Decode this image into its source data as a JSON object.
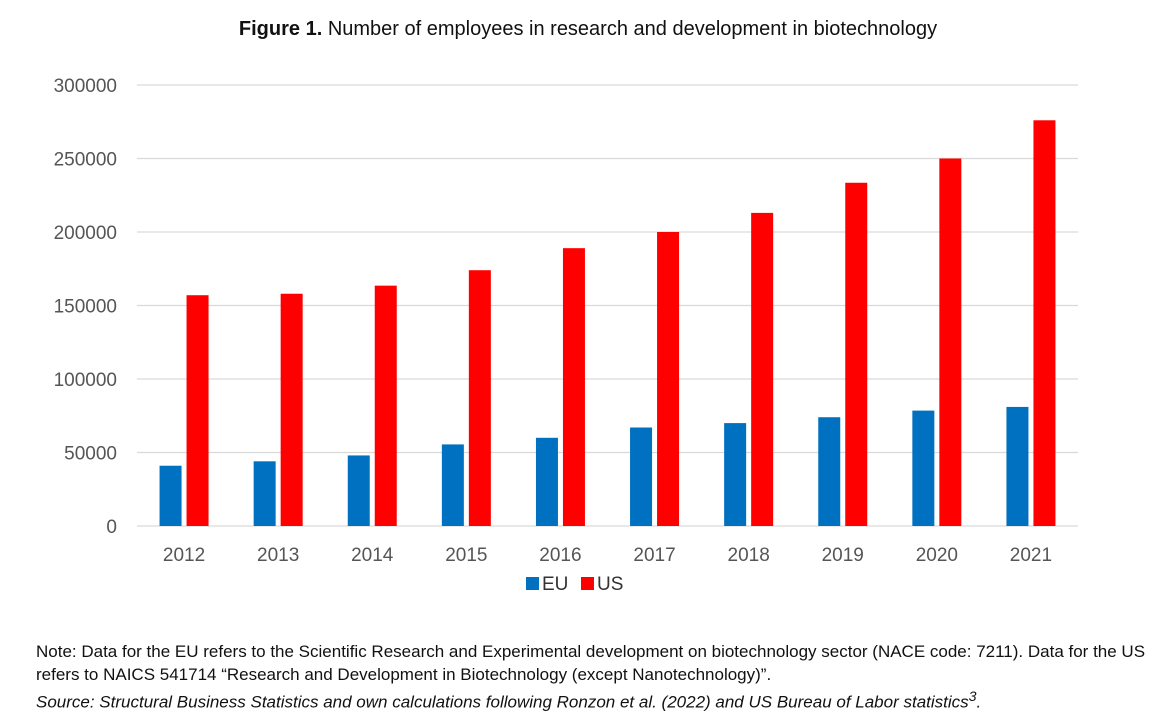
{
  "title": {
    "prefix": "Figure 1.",
    "text": "Number of employees in research and development in biotechnology"
  },
  "chart_data": {
    "type": "bar",
    "title": "Number of employees in research and development in biotechnology",
    "categories": [
      "2012",
      "2013",
      "2014",
      "2015",
      "2016",
      "2017",
      "2018",
      "2019",
      "2020",
      "2021"
    ],
    "series": [
      {
        "name": "EU",
        "color": "#0070C0",
        "values": [
          41000,
          44000,
          48000,
          55500,
          60000,
          67000,
          70000,
          74000,
          78500,
          81000
        ]
      },
      {
        "name": "US",
        "color": "#FF0000",
        "values": [
          157000,
          158000,
          163500,
          174000,
          189000,
          200000,
          213000,
          233500,
          250000,
          276000
        ]
      }
    ],
    "yticks": [
      0,
      50000,
      100000,
      150000,
      200000,
      250000,
      300000
    ],
    "ytick_labels": [
      "0",
      "50000",
      "100000",
      "150000",
      "200000",
      "250000",
      "300000"
    ],
    "ylim": [
      0,
      300000
    ],
    "xlabel": "",
    "ylabel": "",
    "grid": true,
    "legend": "bottom-center"
  },
  "note": {
    "text": "Note: Data for the EU refers to the Scientific Research and Experimental development on biotechnology sector (NACE code: 7211). Data for the US refers to NAICS 541714 “Research and Development in Biotechnology (except Nanotechnology)”.",
    "source": "Source: Structural Business Statistics and own calculations following Ronzon et al. (2022) and US Bureau of Labor statistics",
    "footnote": "3"
  }
}
